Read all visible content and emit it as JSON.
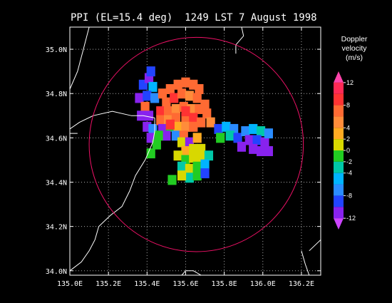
{
  "chart_data": {
    "type": "heatmap",
    "title": "PPI (EL=15.4 deg)  1249 LST 7 August 1998",
    "xlabel": "",
    "ylabel": "",
    "xlim": [
      135.0,
      136.3
    ],
    "ylim": [
      33.98,
      35.1
    ],
    "x_ticks": [
      135.0,
      135.2,
      135.4,
      135.6,
      135.8,
      136.0,
      136.2
    ],
    "x_tick_labels": [
      "135.0E",
      "135.2E",
      "135.4E",
      "135.6E",
      "135.8E",
      "136.0E",
      "136.2E"
    ],
    "y_ticks": [
      34.0,
      34.2,
      34.4,
      34.6,
      34.8,
      35.0
    ],
    "y_tick_labels": [
      "34.0N",
      "34.2N",
      "34.4N",
      "34.6N",
      "34.8N",
      "35.0N"
    ],
    "grid": true,
    "range_ring": {
      "center_lon": 135.655,
      "center_lat": 34.57,
      "radius_deg": 0.555
    },
    "colorbar": {
      "title_lines": [
        "Doppler",
        "velocity",
        "(m/s)"
      ],
      "min": -14,
      "max": 14,
      "tick_values": [
        12,
        8,
        4,
        2,
        0,
        -2,
        -4,
        -8,
        -12
      ],
      "tick_labels": [
        "12",
        "8",
        "4",
        "2",
        "0",
        "-2",
        "-4",
        "-8",
        "-12"
      ],
      "placement": "right",
      "bands": [
        {
          "from": 12,
          "to": 14,
          "color": "#ff44aa"
        },
        {
          "from": 10,
          "to": 12,
          "color": "#ff2a55"
        },
        {
          "from": 8,
          "to": 10,
          "color": "#ff3333"
        },
        {
          "from": 6,
          "to": 8,
          "color": "#ff6a33"
        },
        {
          "from": 4,
          "to": 6,
          "color": "#ff8c3a"
        },
        {
          "from": 2,
          "to": 4,
          "color": "#ffaa22"
        },
        {
          "from": 0,
          "to": 2,
          "color": "#d8d800"
        },
        {
          "from": -2,
          "to": 0,
          "color": "#22cc22"
        },
        {
          "from": -4,
          "to": -2,
          "color": "#00c8a8"
        },
        {
          "from": -6,
          "to": -4,
          "color": "#00b4ff"
        },
        {
          "from": -8,
          "to": -6,
          "color": "#2a8cff"
        },
        {
          "from": -10,
          "to": -8,
          "color": "#2244ff"
        },
        {
          "from": -12,
          "to": -10,
          "color": "#8822ee"
        },
        {
          "from": -14,
          "to": -12,
          "color": "#cc44ff"
        }
      ]
    },
    "coastlines": [
      [
        [
          135.1,
          35.1
        ],
        [
          135.07,
          35.0
        ],
        [
          135.04,
          34.9
        ],
        [
          135.0,
          34.82
        ]
      ],
      [
        [
          135.0,
          34.64
        ],
        [
          135.05,
          34.67
        ],
        [
          135.12,
          34.7
        ],
        [
          135.22,
          34.72
        ],
        [
          135.32,
          34.7
        ],
        [
          135.38,
          34.7
        ],
        [
          135.44,
          34.69
        ]
      ],
      [
        [
          135.0,
          34.62
        ],
        [
          135.04,
          34.62
        ]
      ],
      [
        [
          135.44,
          34.69
        ],
        [
          135.44,
          34.63
        ],
        [
          135.43,
          34.58
        ],
        [
          135.39,
          34.5
        ],
        [
          135.34,
          34.43
        ],
        [
          135.31,
          34.36
        ],
        [
          135.27,
          34.29
        ],
        [
          135.21,
          34.25
        ],
        [
          135.15,
          34.2
        ],
        [
          135.13,
          34.14
        ],
        [
          135.1,
          34.09
        ],
        [
          135.06,
          34.04
        ],
        [
          135.0,
          34.0
        ]
      ],
      [
        [
          135.89,
          35.1
        ],
        [
          135.9,
          35.06
        ],
        [
          135.86,
          35.02
        ],
        [
          135.86,
          34.98
        ]
      ],
      [
        [
          136.2,
          34.09
        ],
        [
          136.22,
          34.03
        ],
        [
          136.24,
          33.98
        ]
      ],
      [
        [
          136.24,
          34.09
        ],
        [
          136.3,
          34.14
        ]
      ],
      [
        [
          135.58,
          33.98
        ],
        [
          135.6,
          34.0
        ],
        [
          135.64,
          34.0
        ],
        [
          135.68,
          33.98
        ]
      ]
    ],
    "echo_cells": [
      {
        "lon": 135.38,
        "lat": 34.84,
        "v": -10
      },
      {
        "lon": 135.41,
        "lat": 34.87,
        "v": -12
      },
      {
        "lon": 135.43,
        "lat": 34.83,
        "v": -6
      },
      {
        "lon": 135.36,
        "lat": 34.78,
        "v": -12
      },
      {
        "lon": 135.4,
        "lat": 34.79,
        "v": -10
      },
      {
        "lon": 135.44,
        "lat": 34.78,
        "v": -8
      },
      {
        "lon": 135.42,
        "lat": 34.9,
        "v": -10
      },
      {
        "lon": 135.39,
        "lat": 34.74,
        "v": 6
      },
      {
        "lon": 135.37,
        "lat": 34.7,
        "v": -12
      },
      {
        "lon": 135.41,
        "lat": 34.7,
        "v": -12
      },
      {
        "lon": 135.4,
        "lat": 34.65,
        "v": -12
      },
      {
        "lon": 135.43,
        "lat": 34.64,
        "v": -8
      },
      {
        "lon": 135.42,
        "lat": 34.6,
        "v": -12
      },
      {
        "lon": 135.48,
        "lat": 34.8,
        "v": 6
      },
      {
        "lon": 135.52,
        "lat": 34.82,
        "v": 6
      },
      {
        "lon": 135.56,
        "lat": 34.84,
        "v": 6
      },
      {
        "lon": 135.6,
        "lat": 34.85,
        "v": 6
      },
      {
        "lon": 135.64,
        "lat": 34.84,
        "v": 6
      },
      {
        "lon": 135.67,
        "lat": 34.82,
        "v": 6
      },
      {
        "lon": 135.5,
        "lat": 34.76,
        "v": 6
      },
      {
        "lon": 135.54,
        "lat": 34.78,
        "v": 8
      },
      {
        "lon": 135.58,
        "lat": 34.8,
        "v": 6
      },
      {
        "lon": 135.62,
        "lat": 34.79,
        "v": 4
      },
      {
        "lon": 135.66,
        "lat": 34.78,
        "v": 6
      },
      {
        "lon": 135.7,
        "lat": 34.75,
        "v": 6
      },
      {
        "lon": 135.47,
        "lat": 34.72,
        "v": 8
      },
      {
        "lon": 135.51,
        "lat": 34.72,
        "v": 6
      },
      {
        "lon": 135.55,
        "lat": 34.73,
        "v": 4
      },
      {
        "lon": 135.59,
        "lat": 34.74,
        "v": 6
      },
      {
        "lon": 135.63,
        "lat": 34.73,
        "v": 4
      },
      {
        "lon": 135.67,
        "lat": 34.73,
        "v": 6
      },
      {
        "lon": 135.71,
        "lat": 34.71,
        "v": 6
      },
      {
        "lon": 135.47,
        "lat": 34.68,
        "v": 6
      },
      {
        "lon": 135.51,
        "lat": 34.68,
        "v": 4
      },
      {
        "lon": 135.55,
        "lat": 34.69,
        "v": 6
      },
      {
        "lon": 135.6,
        "lat": 34.69,
        "v": 6
      },
      {
        "lon": 135.64,
        "lat": 34.69,
        "v": 8
      },
      {
        "lon": 135.68,
        "lat": 34.67,
        "v": 6
      },
      {
        "lon": 135.73,
        "lat": 34.67,
        "v": 4
      },
      {
        "lon": 135.48,
        "lat": 34.64,
        "v": -12
      },
      {
        "lon": 135.52,
        "lat": 34.65,
        "v": -2
      },
      {
        "lon": 135.56,
        "lat": 34.65,
        "v": 2
      },
      {
        "lon": 135.6,
        "lat": 34.65,
        "v": 4
      },
      {
        "lon": 135.64,
        "lat": 34.65,
        "v": 6
      },
      {
        "lon": 135.5,
        "lat": 34.61,
        "v": -12
      },
      {
        "lon": 135.46,
        "lat": 34.61,
        "v": -2
      },
      {
        "lon": 135.55,
        "lat": 34.61,
        "v": -8
      },
      {
        "lon": 135.59,
        "lat": 34.61,
        "v": 6
      },
      {
        "lon": 135.45,
        "lat": 34.57,
        "v": -2
      },
      {
        "lon": 135.58,
        "lat": 34.58,
        "v": 0
      },
      {
        "lon": 135.62,
        "lat": 34.58,
        "v": -12
      },
      {
        "lon": 135.66,
        "lat": 34.6,
        "v": 2
      },
      {
        "lon": 135.6,
        "lat": 34.54,
        "v": 2
      },
      {
        "lon": 135.64,
        "lat": 34.55,
        "v": 0
      },
      {
        "lon": 135.68,
        "lat": 34.55,
        "v": 0
      },
      {
        "lon": 135.56,
        "lat": 34.52,
        "v": 0
      },
      {
        "lon": 135.6,
        "lat": 34.5,
        "v": -2
      },
      {
        "lon": 135.64,
        "lat": 34.51,
        "v": 0
      },
      {
        "lon": 135.68,
        "lat": 34.51,
        "v": 0
      },
      {
        "lon": 135.72,
        "lat": 34.52,
        "v": -4
      },
      {
        "lon": 135.58,
        "lat": 34.47,
        "v": -4
      },
      {
        "lon": 135.62,
        "lat": 34.46,
        "v": 0
      },
      {
        "lon": 135.66,
        "lat": 34.47,
        "v": -2
      },
      {
        "lon": 135.7,
        "lat": 34.48,
        "v": -6
      },
      {
        "lon": 135.62,
        "lat": 34.42,
        "v": -4
      },
      {
        "lon": 135.66,
        "lat": 34.43,
        "v": -2
      },
      {
        "lon": 135.58,
        "lat": 34.43,
        "v": 0
      },
      {
        "lon": 135.7,
        "lat": 34.44,
        "v": -10
      },
      {
        "lon": 135.42,
        "lat": 34.53,
        "v": -2
      },
      {
        "lon": 135.53,
        "lat": 34.41,
        "v": -2
      },
      {
        "lon": 135.77,
        "lat": 34.64,
        "v": -10
      },
      {
        "lon": 135.81,
        "lat": 34.65,
        "v": -6
      },
      {
        "lon": 135.85,
        "lat": 34.64,
        "v": -8
      },
      {
        "lon": 135.78,
        "lat": 34.6,
        "v": -2
      },
      {
        "lon": 135.83,
        "lat": 34.61,
        "v": -4
      },
      {
        "lon": 135.87,
        "lat": 34.6,
        "v": -10
      },
      {
        "lon": 135.91,
        "lat": 34.63,
        "v": -8
      },
      {
        "lon": 135.95,
        "lat": 34.64,
        "v": -6
      },
      {
        "lon": 135.99,
        "lat": 34.63,
        "v": -4
      },
      {
        "lon": 135.93,
        "lat": 34.59,
        "v": -12
      },
      {
        "lon": 135.97,
        "lat": 34.59,
        "v": -10
      },
      {
        "lon": 136.01,
        "lat": 34.58,
        "v": -12
      },
      {
        "lon": 135.95,
        "lat": 34.55,
        "v": -12
      },
      {
        "lon": 135.99,
        "lat": 34.54,
        "v": -12
      },
      {
        "lon": 136.03,
        "lat": 34.54,
        "v": -12
      },
      {
        "lon": 136.03,
        "lat": 34.62,
        "v": -8
      },
      {
        "lon": 135.89,
        "lat": 34.56,
        "v": -12
      },
      {
        "lon": 135.52,
        "lat": 34.66,
        "v": 8
      },
      {
        "lon": 135.6,
        "lat": 34.72,
        "v": 8
      }
    ]
  }
}
